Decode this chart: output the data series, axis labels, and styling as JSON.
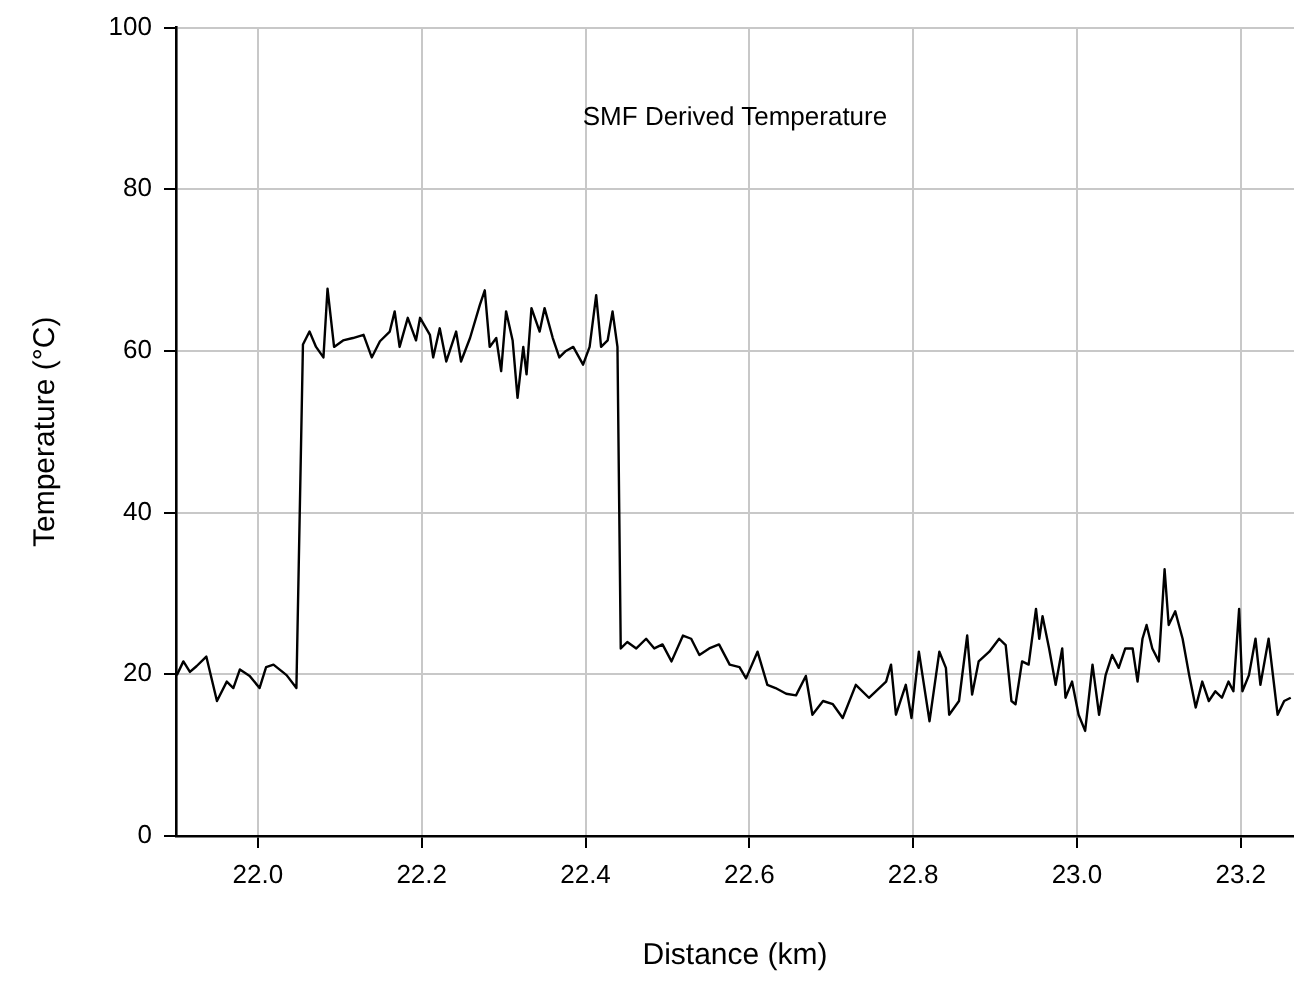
{
  "chart_data": {
    "type": "line",
    "title": "SMF Derived Temperature",
    "xlabel": "Distance (km)",
    "ylabel": "Temperature (°C)",
    "xlim": [
      21.9,
      23.265
    ],
    "xticks": [
      {
        "value": 22.0,
        "label": "22.0"
      },
      {
        "value": 22.2,
        "label": "22.2"
      },
      {
        "value": 22.4,
        "label": "22.4"
      },
      {
        "value": 22.6,
        "label": "22.6"
      },
      {
        "value": 22.8,
        "label": "22.8"
      },
      {
        "value": 23.0,
        "label": "23.0"
      },
      {
        "value": 23.2,
        "label": "23.2"
      }
    ],
    "ylim": [
      0,
      100
    ],
    "yticks": [
      0,
      20,
      40,
      60,
      80,
      100
    ],
    "grid": true,
    "legend": false,
    "marker": "none",
    "line_style": "solid",
    "series": [
      {
        "color": "#000000",
        "x": [
          21.901,
          21.909,
          21.917,
          21.925,
          21.937,
          21.95,
          21.962,
          21.97,
          21.978,
          21.99,
          22.002,
          22.01,
          22.019,
          22.035,
          22.047,
          22.055,
          22.063,
          22.071,
          22.08,
          22.085,
          22.093,
          22.104,
          22.116,
          22.129,
          22.139,
          22.149,
          22.161,
          22.167,
          22.173,
          22.183,
          22.193,
          22.198,
          22.21,
          22.214,
          22.222,
          22.23,
          22.242,
          22.248,
          22.259,
          22.271,
          22.277,
          22.283,
          22.291,
          22.297,
          22.303,
          22.311,
          22.317,
          22.324,
          22.328,
          22.334,
          22.344,
          22.35,
          22.36,
          22.368,
          22.376,
          22.385,
          22.397,
          22.405,
          22.413,
          22.419,
          22.427,
          22.433,
          22.439,
          22.443,
          22.451,
          22.462,
          22.474,
          22.484,
          22.494,
          22.505,
          22.519,
          22.529,
          22.539,
          22.551,
          22.563,
          22.576,
          22.588,
          22.596,
          22.61,
          22.622,
          22.632,
          22.645,
          22.657,
          22.669,
          22.677,
          22.69,
          22.702,
          22.714,
          22.73,
          22.746,
          22.767,
          22.773,
          22.779,
          22.791,
          22.798,
          22.807,
          22.82,
          22.832,
          22.84,
          22.844,
          22.856,
          22.866,
          22.872,
          22.88,
          22.893,
          22.905,
          22.913,
          22.92,
          22.925,
          22.933,
          22.941,
          22.95,
          22.954,
          22.958,
          22.966,
          22.974,
          22.982,
          22.986,
          22.994,
          23.002,
          23.01,
          23.019,
          23.027,
          23.035,
          23.043,
          23.051,
          23.059,
          23.068,
          23.074,
          23.08,
          23.085,
          23.092,
          23.1,
          23.107,
          23.112,
          23.12,
          23.129,
          23.137,
          23.145,
          23.153,
          23.161,
          23.169,
          23.177,
          23.185,
          23.191,
          23.198,
          23.202,
          23.21,
          23.218,
          23.224,
          23.234,
          23.245,
          23.253,
          23.261
        ],
        "values": [
          19.9,
          21.6,
          20.3,
          21.0,
          22.2,
          16.7,
          19.1,
          18.3,
          20.6,
          19.8,
          18.3,
          20.9,
          21.2,
          19.9,
          18.3,
          60.8,
          62.4,
          60.5,
          59.2,
          67.7,
          60.5,
          61.3,
          61.6,
          62.0,
          59.2,
          61.2,
          62.4,
          64.9,
          60.5,
          64.1,
          61.3,
          64.1,
          62.0,
          59.2,
          62.8,
          58.7,
          62.4,
          58.7,
          61.6,
          65.7,
          67.5,
          60.5,
          61.6,
          57.5,
          64.9,
          61.3,
          54.2,
          60.5,
          57.1,
          65.3,
          62.4,
          65.3,
          61.6,
          59.2,
          60.0,
          60.5,
          58.3,
          60.5,
          66.9,
          60.5,
          61.3,
          64.9,
          60.5,
          23.2,
          24.0,
          23.2,
          24.4,
          23.2,
          23.7,
          21.6,
          24.8,
          24.4,
          22.4,
          23.2,
          23.7,
          21.2,
          20.9,
          19.5,
          22.8,
          18.7,
          18.3,
          17.6,
          17.4,
          19.8,
          15.0,
          16.7,
          16.3,
          14.6,
          18.7,
          17.1,
          19.1,
          21.2,
          15.0,
          18.7,
          14.6,
          22.8,
          14.2,
          22.8,
          20.8,
          15.0,
          16.7,
          24.8,
          17.5,
          21.6,
          22.8,
          24.4,
          23.6,
          16.7,
          16.3,
          21.6,
          21.2,
          28.1,
          24.4,
          27.2,
          23.2,
          18.7,
          23.2,
          17.1,
          19.1,
          15.0,
          13.0,
          21.2,
          15.0,
          19.9,
          22.4,
          20.8,
          23.2,
          23.2,
          19.1,
          24.4,
          26.1,
          23.2,
          21.6,
          33.0,
          26.1,
          27.8,
          24.4,
          19.9,
          15.9,
          19.1,
          16.7,
          17.9,
          17.1,
          19.1,
          17.9,
          28.1,
          17.9,
          19.9,
          24.4,
          18.7,
          24.4,
          15.0,
          16.7,
          17.1
        ]
      }
    ]
  }
}
